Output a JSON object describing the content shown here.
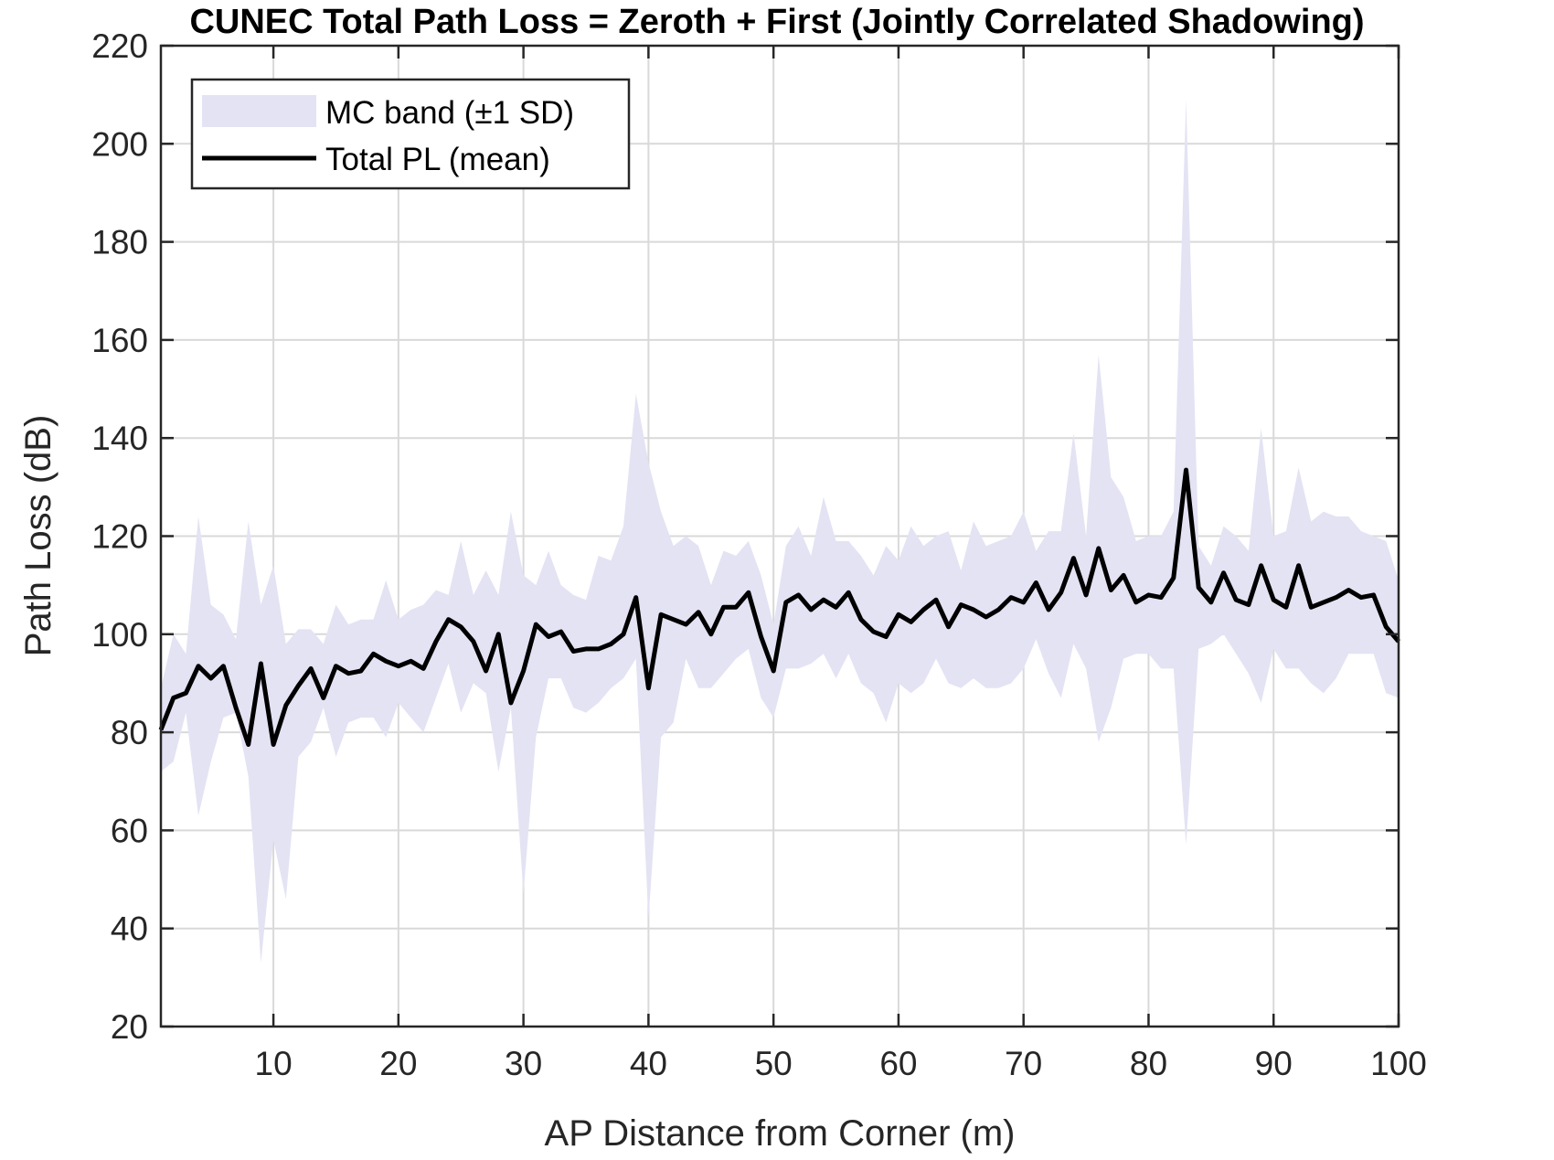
{
  "chart_data": {
    "type": "line",
    "title": "CUNEC Total Path Loss = Zeroth + First (Jointly Correlated Shadowing)",
    "xlabel": "AP Distance from Corner (m)",
    "ylabel": "Path Loss (dB)",
    "xlim": [
      1,
      100
    ],
    "ylim": [
      20,
      220
    ],
    "xticks": [
      10,
      20,
      30,
      40,
      50,
      60,
      70,
      80,
      90,
      100
    ],
    "yticks": [
      20,
      40,
      60,
      80,
      100,
      120,
      140,
      160,
      180,
      200,
      220
    ],
    "grid": true,
    "legend_position": "top-left",
    "legend": {
      "band_label": "MC band (±1 SD)",
      "line_label": "Total PL (mean)"
    },
    "colors": {
      "band": "#e3e3f4",
      "line": "#000000",
      "grid": "#d9d9d9",
      "axes": "#262626"
    },
    "x": [
      1,
      2,
      3,
      4,
      5,
      6,
      7,
      8,
      9,
      10,
      11,
      12,
      13,
      14,
      15,
      16,
      17,
      18,
      19,
      20,
      21,
      22,
      23,
      24,
      25,
      26,
      27,
      28,
      29,
      30,
      31,
      32,
      33,
      34,
      35,
      36,
      37,
      38,
      39,
      40,
      41,
      42,
      43,
      44,
      45,
      46,
      47,
      48,
      49,
      50,
      51,
      52,
      53,
      54,
      55,
      56,
      57,
      58,
      59,
      60,
      61,
      62,
      63,
      64,
      65,
      66,
      67,
      68,
      69,
      70,
      71,
      72,
      73,
      74,
      75,
      76,
      77,
      78,
      79,
      80,
      81,
      82,
      83,
      84,
      85,
      86,
      87,
      88,
      89,
      90,
      91,
      92,
      93,
      94,
      95,
      96,
      97,
      98,
      99,
      100
    ],
    "series": [
      {
        "name": "Total PL (mean)",
        "values": [
          80.5,
          87,
          88,
          93.5,
          91,
          93.5,
          85,
          77.5,
          94,
          77.5,
          85.5,
          89.5,
          93,
          87,
          93.5,
          92,
          92.5,
          96,
          94.5,
          93.5,
          94.5,
          93,
          98.5,
          103,
          101.5,
          98.5,
          92.5,
          100,
          86,
          92.5,
          102,
          99.5,
          100.5,
          96.5,
          97,
          97,
          98,
          100,
          107.5,
          89,
          104,
          103,
          102,
          104.5,
          100,
          105.5,
          105.5,
          108.5,
          99.5,
          92.5,
          106.5,
          108,
          105,
          107,
          105.5,
          108.5,
          103,
          100.5,
          99.5,
          104,
          102.5,
          105,
          107,
          101.5,
          106,
          105,
          103.5,
          105,
          107.5,
          106.5,
          110.5,
          105,
          108.5,
          115.5,
          108,
          117.5,
          109,
          112,
          106.5,
          108,
          107.5,
          111.5,
          133.5,
          109.5,
          106.5,
          112.5,
          107,
          106,
          114,
          107,
          105.5,
          114,
          105.5,
          106.5,
          107.5,
          109,
          107.5,
          108,
          101.5,
          98.5
        ]
      },
      {
        "name": "MC band (±1 SD)",
        "upper": [
          89,
          100,
          96,
          124,
          106,
          104,
          99,
          123,
          106,
          114,
          98,
          101,
          101,
          98,
          106,
          102,
          103,
          103,
          111,
          103,
          105,
          106,
          109,
          108,
          119,
          108,
          113,
          108,
          125,
          112,
          110,
          117,
          110,
          108,
          107,
          116,
          115,
          122,
          149,
          135,
          125,
          118,
          120,
          118,
          110,
          117,
          116,
          119,
          112,
          102,
          118,
          122,
          116,
          128,
          119,
          119,
          116,
          112,
          118,
          115,
          122,
          118,
          120,
          121,
          113,
          123,
          118,
          119,
          120,
          125,
          117,
          121,
          121,
          141,
          120,
          157,
          132,
          128,
          119,
          120,
          120,
          125,
          209,
          118,
          114,
          122,
          120,
          117,
          142,
          120,
          121,
          134,
          123,
          125,
          124,
          124,
          121,
          120,
          119,
          111
        ],
        "lower": [
          72,
          74,
          84,
          63,
          74,
          83,
          84,
          71,
          33,
          58,
          46,
          75,
          78,
          85,
          75,
          82,
          83,
          83,
          79,
          86,
          83,
          80,
          87,
          94,
          84,
          90,
          88,
          72,
          85,
          47,
          79,
          91,
          91,
          85,
          84,
          86,
          89,
          91,
          95,
          42,
          79,
          82,
          95,
          89,
          89,
          92,
          95,
          97,
          87,
          83,
          93,
          93,
          94,
          96,
          91,
          96,
          90,
          88,
          82,
          90,
          88,
          90,
          95,
          90,
          89,
          91,
          89,
          89,
          90,
          93,
          99,
          92,
          87,
          98,
          93,
          78,
          85,
          95,
          96,
          96,
          93,
          93,
          57,
          97,
          98,
          100,
          96,
          92,
          86,
          97,
          93,
          93,
          90,
          88,
          91,
          96,
          96,
          96,
          88,
          87
        ]
      }
    ]
  }
}
